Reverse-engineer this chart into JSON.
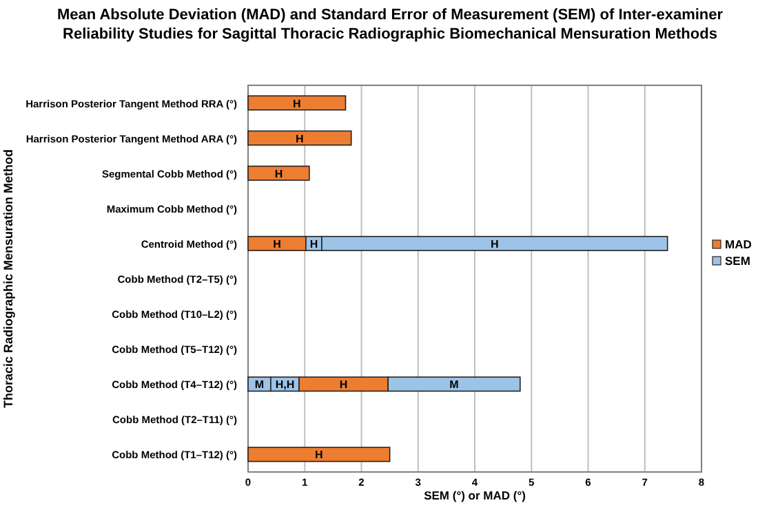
{
  "chart_data": {
    "type": "bar",
    "orientation": "horizontal",
    "stacked": true,
    "title": "Mean Absolute Deviation (MAD) and Standard Error of Measurement (SEM) of Inter-examiner Reliability Studies for Sagittal Thoracic Radiographic Biomechanical Mensuration Methods",
    "xlabel": "SEM (°) or MAD (°)",
    "ylabel": "Thoracic Radiographic Mensuration Method",
    "categories": [
      "Harrison Posterior Tangent Method RRA (°)",
      "Harrison Posterior Tangent Method ARA (°)",
      "Segmental Cobb Method (°)",
      "Maximum Cobb Method (°)",
      "Centroid Method (°)",
      "Cobb Method (T2–T5) (°)",
      "Cobb Method (T10–L2) (°)",
      "Cobb Method (T5–T12) (°)",
      "Cobb Method (T4–T12) (°)",
      "Cobb Method (T2–T11) (°)",
      "Cobb Method (T1–T12) (°)"
    ],
    "series": [
      {
        "color": "#9dc3e6",
        "values": [
          null,
          null,
          null,
          null,
          null,
          null,
          null,
          null,
          0.4,
          null,
          null
        ],
        "value_labels": [
          null,
          null,
          null,
          null,
          null,
          null,
          null,
          null,
          "M",
          null,
          null
        ]
      },
      {
        "color": "#9dc3e6",
        "values": [
          null,
          null,
          null,
          null,
          null,
          null,
          null,
          null,
          0.5,
          null,
          null
        ],
        "value_labels": [
          null,
          null,
          null,
          null,
          null,
          null,
          null,
          null,
          "H,H",
          null,
          null
        ]
      },
      {
        "name": "MAD",
        "color": "#ed7d31",
        "values": [
          1.72,
          1.82,
          1.08,
          null,
          1.02,
          null,
          null,
          null,
          1.57,
          null,
          2.5
        ],
        "value_labels": [
          "H",
          "H",
          "H",
          null,
          "H",
          null,
          null,
          null,
          "H",
          null,
          "H"
        ]
      },
      {
        "name": "SEM",
        "color": "#9dc3e6",
        "values": [
          null,
          null,
          null,
          null,
          0.28,
          null,
          null,
          null,
          2.33,
          null,
          null
        ],
        "value_labels": [
          null,
          null,
          null,
          null,
          "H",
          null,
          null,
          null,
          "M",
          null,
          null
        ]
      },
      {
        "color": "#9dc3e6",
        "values": [
          null,
          null,
          null,
          null,
          6.1,
          null,
          null,
          null,
          null,
          null,
          null
        ],
        "value_labels": [
          null,
          null,
          null,
          null,
          "H",
          null,
          null,
          null,
          null,
          null,
          null
        ]
      }
    ],
    "xlim": [
      0,
      8
    ],
    "xticks": [
      0,
      1,
      2,
      3,
      4,
      5,
      6,
      7,
      8
    ],
    "grid": "x",
    "legend": "right"
  }
}
